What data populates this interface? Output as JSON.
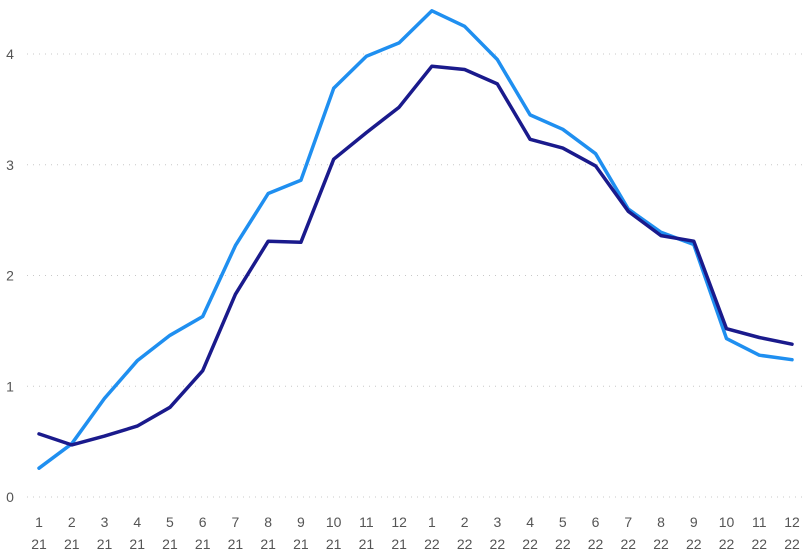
{
  "chart_data": {
    "type": "line",
    "x": [
      {
        "month": "1",
        "year": "21"
      },
      {
        "month": "2",
        "year": "21"
      },
      {
        "month": "3",
        "year": "21"
      },
      {
        "month": "4",
        "year": "21"
      },
      {
        "month": "5",
        "year": "21"
      },
      {
        "month": "6",
        "year": "21"
      },
      {
        "month": "7",
        "year": "21"
      },
      {
        "month": "8",
        "year": "21"
      },
      {
        "month": "9",
        "year": "21"
      },
      {
        "month": "10",
        "year": "21"
      },
      {
        "month": "11",
        "year": "21"
      },
      {
        "month": "12",
        "year": "21"
      },
      {
        "month": "1",
        "year": "22"
      },
      {
        "month": "2",
        "year": "22"
      },
      {
        "month": "3",
        "year": "22"
      },
      {
        "month": "4",
        "year": "22"
      },
      {
        "month": "5",
        "year": "22"
      },
      {
        "month": "6",
        "year": "22"
      },
      {
        "month": "7",
        "year": "22"
      },
      {
        "month": "8",
        "year": "22"
      },
      {
        "month": "9",
        "year": "22"
      },
      {
        "month": "10",
        "year": "22"
      },
      {
        "month": "11",
        "year": "22"
      },
      {
        "month": "12",
        "year": "22"
      }
    ],
    "series": [
      {
        "color": "#1f8ff0",
        "values": [
          0.26,
          0.48,
          0.89,
          1.23,
          1.46,
          1.63,
          2.27,
          2.74,
          2.86,
          3.69,
          3.98,
          4.1,
          4.39,
          4.25,
          3.95,
          3.45,
          3.32,
          3.1,
          2.6,
          2.39,
          2.28,
          1.43,
          1.28,
          1.24
        ]
      },
      {
        "color": "#1a1a8c",
        "values": [
          0.57,
          0.47,
          0.55,
          0.64,
          0.81,
          1.14,
          1.83,
          2.31,
          2.3,
          3.05,
          3.29,
          3.52,
          3.89,
          3.86,
          3.73,
          3.23,
          3.15,
          2.99,
          2.58,
          2.36,
          2.31,
          1.52,
          1.44,
          1.38
        ]
      }
    ],
    "yticks": [
      0,
      1,
      2,
      3,
      4
    ],
    "ylim": [
      0,
      4.4
    ],
    "xlabel": "",
    "ylabel": "",
    "grid": true,
    "legend": "none"
  }
}
